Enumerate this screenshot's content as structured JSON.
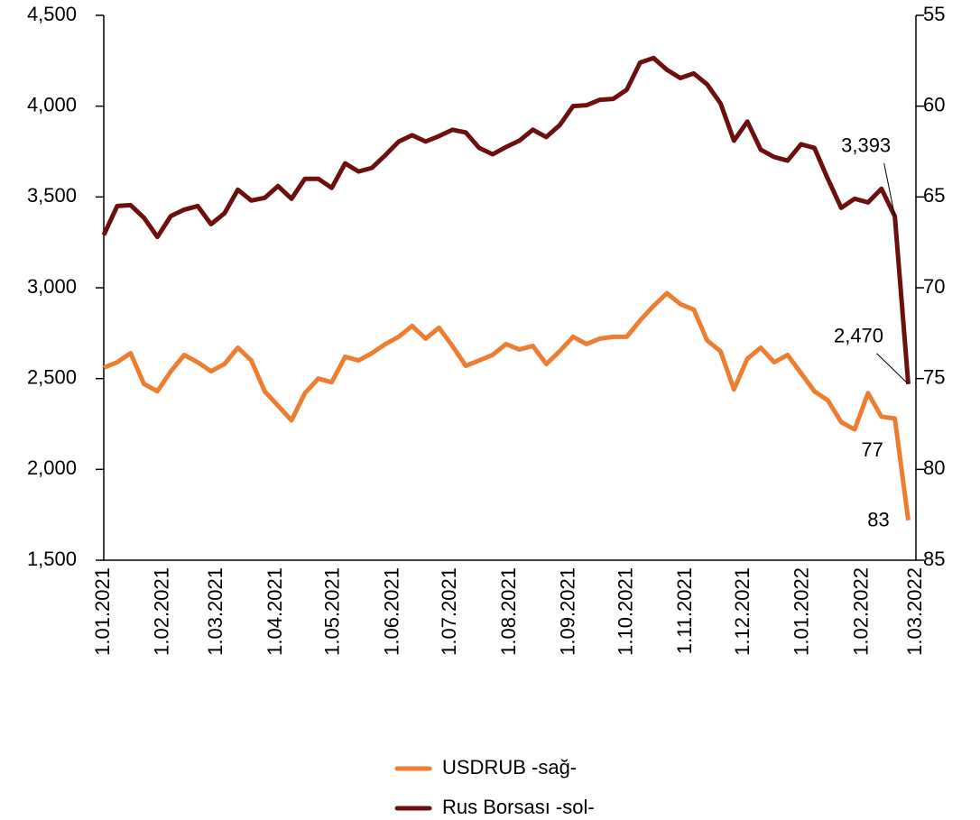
{
  "chart_data": {
    "type": "line",
    "x": [
      "2021-01-01",
      "2021-01-08",
      "2021-01-15",
      "2021-01-22",
      "2021-01-29",
      "2021-02-05",
      "2021-02-12",
      "2021-02-19",
      "2021-02-26",
      "2021-03-05",
      "2021-03-12",
      "2021-03-19",
      "2021-03-26",
      "2021-04-02",
      "2021-04-09",
      "2021-04-16",
      "2021-04-23",
      "2021-04-30",
      "2021-05-07",
      "2021-05-14",
      "2021-05-21",
      "2021-05-28",
      "2021-06-04",
      "2021-06-11",
      "2021-06-18",
      "2021-06-25",
      "2021-07-02",
      "2021-07-09",
      "2021-07-16",
      "2021-07-23",
      "2021-07-30",
      "2021-08-06",
      "2021-08-13",
      "2021-08-20",
      "2021-08-27",
      "2021-09-03",
      "2021-09-10",
      "2021-09-17",
      "2021-09-24",
      "2021-10-01",
      "2021-10-08",
      "2021-10-15",
      "2021-10-22",
      "2021-10-29",
      "2021-11-05",
      "2021-11-12",
      "2021-11-19",
      "2021-11-26",
      "2021-12-03",
      "2021-12-10",
      "2021-12-17",
      "2021-12-24",
      "2021-12-31",
      "2022-01-07",
      "2022-01-14",
      "2022-01-21",
      "2022-01-28",
      "2022-02-04",
      "2022-02-11",
      "2022-02-18",
      "2022-02-25"
    ],
    "series": [
      {
        "name": "USDRUB -sağ-",
        "color": "#ed7d31",
        "axis": "y2",
        "values": [
          74.4,
          74.1,
          73.6,
          75.3,
          75.7,
          74.6,
          73.7,
          74.1,
          74.6,
          74.2,
          73.3,
          74.0,
          75.7,
          76.5,
          77.3,
          75.8,
          75.0,
          75.2,
          73.8,
          74.0,
          73.6,
          73.1,
          72.7,
          72.1,
          72.8,
          72.2,
          73.2,
          74.3,
          74.0,
          73.7,
          73.1,
          73.4,
          73.2,
          74.2,
          73.5,
          72.7,
          73.1,
          72.8,
          72.7,
          72.7,
          71.8,
          71.0,
          70.3,
          70.9,
          71.2,
          72.9,
          73.5,
          75.6,
          73.9,
          73.3,
          74.1,
          73.7,
          74.7,
          75.7,
          76.2,
          77.4,
          77.8,
          75.8,
          77.1,
          77.2,
          82.8
        ],
        "value_labels": [
          null,
          null,
          null,
          null,
          null,
          null,
          null,
          null,
          null,
          null,
          null,
          null,
          null,
          null,
          null,
          null,
          null,
          null,
          null,
          null,
          null,
          null,
          null,
          null,
          null,
          null,
          null,
          null,
          null,
          null,
          null,
          null,
          null,
          null,
          null,
          null,
          null,
          null,
          null,
          null,
          null,
          null,
          null,
          null,
          null,
          null,
          null,
          null,
          null,
          null,
          null,
          null,
          null,
          null,
          null,
          null,
          null,
          null,
          null,
          "77",
          "83"
        ]
      },
      {
        "name": "Rus Borsası -sol-",
        "color": "#6e0f0f",
        "values": [
          3290,
          3450,
          3455,
          3385,
          3280,
          3395,
          3430,
          3450,
          3350,
          3410,
          3540,
          3480,
          3495,
          3560,
          3490,
          3600,
          3600,
          3550,
          3685,
          3640,
          3660,
          3730,
          3805,
          3840,
          3805,
          3835,
          3870,
          3855,
          3770,
          3735,
          3775,
          3810,
          3870,
          3830,
          3895,
          4000,
          4005,
          4035,
          4040,
          4090,
          4240,
          4265,
          4200,
          4155,
          4180,
          4120,
          4015,
          3810,
          3915,
          3760,
          3720,
          3700,
          3790,
          3770,
          3600,
          3440,
          3490,
          3470,
          3545,
          3393,
          2470
        ],
        "value_labels": [
          null,
          null,
          null,
          null,
          null,
          null,
          null,
          null,
          null,
          null,
          null,
          null,
          null,
          null,
          null,
          null,
          null,
          null,
          null,
          null,
          null,
          null,
          null,
          null,
          null,
          null,
          null,
          null,
          null,
          null,
          null,
          null,
          null,
          null,
          null,
          null,
          null,
          null,
          null,
          null,
          null,
          null,
          null,
          null,
          null,
          null,
          null,
          null,
          null,
          null,
          null,
          null,
          null,
          null,
          null,
          null,
          null,
          null,
          null,
          "3,393",
          "2,470"
        ]
      }
    ],
    "xlim": [
      "2021-01-01",
      "2022-03-01"
    ],
    "xticks": [
      {
        "value": "2021-01-01",
        "label": "1.01.2021"
      },
      {
        "value": "2021-02-01",
        "label": "1.02.2021"
      },
      {
        "value": "2021-03-01",
        "label": "1.03.2021"
      },
      {
        "value": "2021-04-01",
        "label": "1.04.2021"
      },
      {
        "value": "2021-05-01",
        "label": "1.05.2021"
      },
      {
        "value": "2021-06-01",
        "label": "1.06.2021"
      },
      {
        "value": "2021-07-01",
        "label": "1.07.2021"
      },
      {
        "value": "2021-08-01",
        "label": "1.08.2021"
      },
      {
        "value": "2021-09-01",
        "label": "1.09.2021"
      },
      {
        "value": "2021-10-01",
        "label": "1.10.2021"
      },
      {
        "value": "2021-11-01",
        "label": "1.11.2021"
      },
      {
        "value": "2021-12-01",
        "label": "1.12.2021"
      },
      {
        "value": "2022-01-01",
        "label": "1.01.2022"
      },
      {
        "value": "2022-02-01",
        "label": "1.02.2022"
      },
      {
        "value": "2022-03-01",
        "label": "1.03.2022"
      }
    ],
    "ylim": [
      1500,
      4500
    ],
    "yticks": [
      {
        "value": 1500,
        "label": "1,500"
      },
      {
        "value": 2000,
        "label": "2,000"
      },
      {
        "value": 2500,
        "label": "2,500"
      },
      {
        "value": 3000,
        "label": "3,000"
      },
      {
        "value": 3500,
        "label": "3,500"
      },
      {
        "value": 4000,
        "label": "4,000"
      },
      {
        "value": 4500,
        "label": "4,500"
      }
    ],
    "y2lim": [
      85,
      55
    ],
    "y2ticks": [
      85,
      80,
      75,
      70,
      65,
      60,
      55
    ],
    "legend": "bottom"
  }
}
